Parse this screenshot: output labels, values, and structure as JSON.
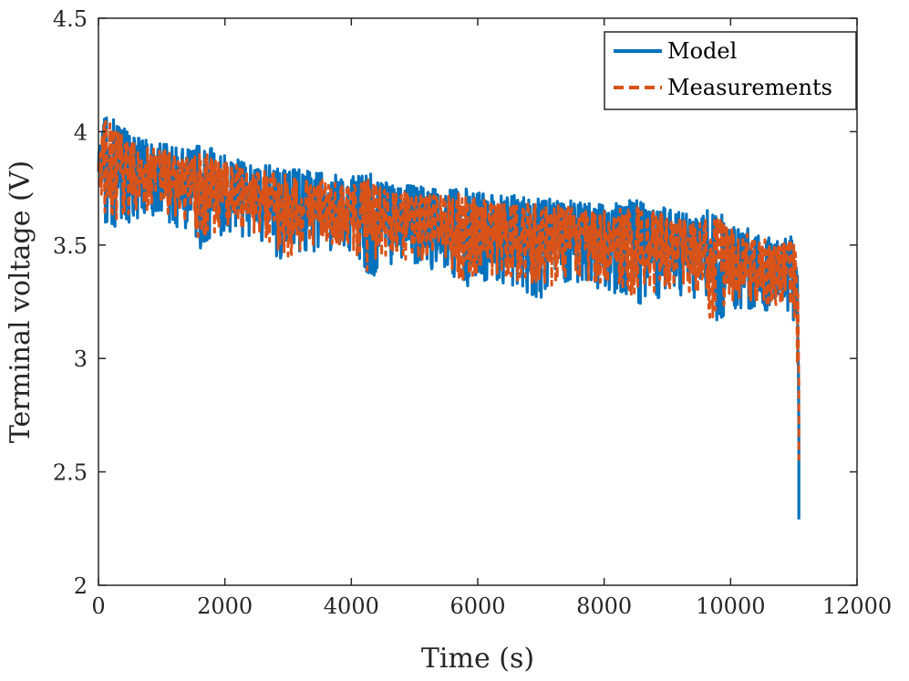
{
  "chart_data": {
    "type": "line",
    "title": "",
    "xlabel": "Time (s)",
    "ylabel": "Terminal voltage (V)",
    "xlim": [
      0,
      12000
    ],
    "ylim": [
      2,
      4.5
    ],
    "xticks": [
      0,
      2000,
      4000,
      6000,
      8000,
      10000,
      12000
    ],
    "xtick_labels": [
      "0",
      "2000",
      "4000",
      "6000",
      "8000",
      "10000",
      "12000"
    ],
    "yticks": [
      2,
      2.5,
      3,
      3.5,
      4,
      4.5
    ],
    "ytick_labels": [
      "2",
      "2.5",
      "3",
      "3.5",
      "4",
      "4.5"
    ],
    "grid": false,
    "legend_position": "top-right",
    "series": [
      {
        "name": "Model",
        "color": "#0072BD",
        "style": "solid",
        "x": [
          0,
          100,
          300,
          600,
          1000,
          1500,
          1600,
          2000,
          2500,
          3000,
          3500,
          4000,
          4300,
          4500,
          5000,
          5500,
          5700,
          6000,
          6500,
          7000,
          7500,
          8000,
          8500,
          9000,
          9500,
          9700,
          10000,
          10500,
          10800,
          11000,
          11050,
          11080
        ],
        "upper": [
          3.95,
          4.08,
          4.05,
          3.98,
          3.95,
          3.92,
          3.95,
          3.9,
          3.86,
          3.84,
          3.82,
          3.8,
          3.82,
          3.78,
          3.76,
          3.75,
          3.76,
          3.73,
          3.72,
          3.71,
          3.7,
          3.68,
          3.7,
          3.66,
          3.63,
          3.68,
          3.6,
          3.56,
          3.52,
          3.57,
          3.5,
          3.0
        ],
        "lower": [
          3.74,
          3.58,
          3.57,
          3.62,
          3.61,
          3.55,
          3.48,
          3.55,
          3.52,
          3.4,
          3.48,
          3.45,
          3.33,
          3.42,
          3.4,
          3.38,
          3.29,
          3.34,
          3.33,
          3.26,
          3.33,
          3.3,
          3.23,
          3.28,
          3.25,
          3.11,
          3.22,
          3.2,
          3.18,
          3.15,
          3.0,
          2.29
        ]
      },
      {
        "name": "Measurements",
        "color": "#D95319",
        "style": "dashed",
        "x": [
          0,
          100,
          300,
          600,
          1000,
          1500,
          1600,
          2000,
          2500,
          3000,
          3500,
          4000,
          4300,
          4500,
          5000,
          5500,
          5700,
          6000,
          6500,
          7000,
          7500,
          8000,
          8500,
          9000,
          9500,
          9700,
          10000,
          10500,
          10800,
          11000,
          11050,
          11080
        ],
        "upper": [
          3.92,
          4.05,
          4.02,
          3.95,
          3.92,
          3.89,
          3.92,
          3.87,
          3.83,
          3.81,
          3.79,
          3.77,
          3.79,
          3.75,
          3.73,
          3.72,
          3.73,
          3.7,
          3.69,
          3.68,
          3.67,
          3.65,
          3.67,
          3.63,
          3.6,
          3.65,
          3.57,
          3.53,
          3.5,
          3.54,
          3.46,
          3.1
        ],
        "lower": [
          3.77,
          3.62,
          3.61,
          3.65,
          3.64,
          3.58,
          3.52,
          3.58,
          3.55,
          3.44,
          3.51,
          3.48,
          3.37,
          3.45,
          3.43,
          3.41,
          3.33,
          3.37,
          3.36,
          3.3,
          3.36,
          3.33,
          3.27,
          3.31,
          3.28,
          3.16,
          3.25,
          3.23,
          3.22,
          3.19,
          3.05,
          2.55
        ]
      }
    ]
  }
}
